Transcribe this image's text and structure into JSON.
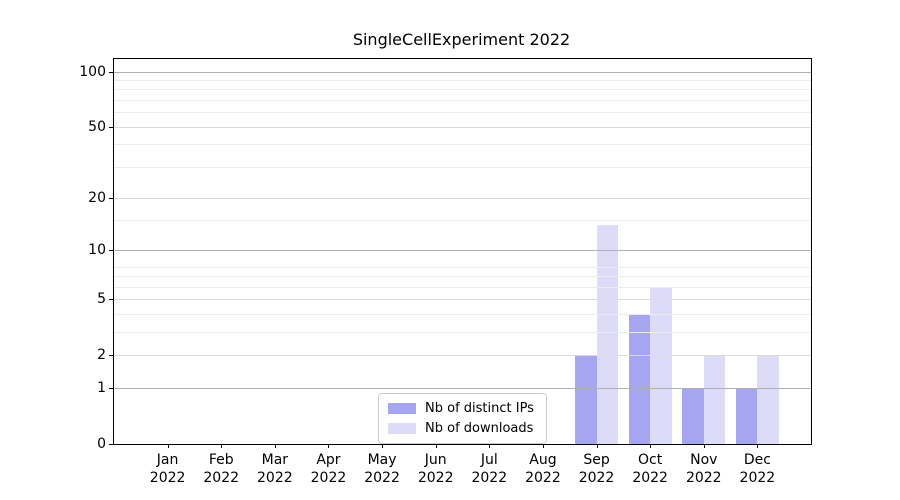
{
  "chart_data": {
    "type": "bar",
    "title": "SingleCellExperiment 2022",
    "x_tick_labels": [
      [
        "Jan",
        "2022"
      ],
      [
        "Feb",
        "2022"
      ],
      [
        "Mar",
        "2022"
      ],
      [
        "Apr",
        "2022"
      ],
      [
        "May",
        "2022"
      ],
      [
        "Jun",
        "2022"
      ],
      [
        "Jul",
        "2022"
      ],
      [
        "Aug",
        "2022"
      ],
      [
        "Sep",
        "2022"
      ],
      [
        "Oct",
        "2022"
      ],
      [
        "Nov",
        "2022"
      ],
      [
        "Dec",
        "2022"
      ]
    ],
    "series": [
      {
        "name": "Nb of distinct IPs",
        "color": "#a5a5f1",
        "values": [
          0,
          0,
          0,
          0,
          0,
          0,
          0,
          0,
          2,
          4,
          1,
          1
        ]
      },
      {
        "name": "Nb of downloads",
        "color": "#dcdcf8",
        "values": [
          0,
          0,
          0,
          0,
          0,
          0,
          0,
          0,
          14,
          6,
          2,
          2
        ]
      }
    ],
    "y_ticks": [
      0,
      1,
      2,
      5,
      10,
      20,
      50,
      100
    ],
    "y_scale": "log10(1+v)",
    "ylim": [
      0,
      117
    ],
    "grid": {
      "major": [
        1,
        10,
        100
      ],
      "light": [
        2,
        5,
        20,
        50
      ],
      "minor": [
        3,
        4,
        6,
        7,
        8,
        15,
        30,
        40,
        60,
        70,
        80,
        90
      ]
    },
    "legend": {
      "position": "lower center",
      "border_color": "#cccccc"
    },
    "colors": {
      "spine": "#000000",
      "major_grid": "#b0b0b0",
      "light_grid": "#dbdbdb",
      "minor_grid": "#ececec",
      "background": "#ffffff"
    }
  }
}
